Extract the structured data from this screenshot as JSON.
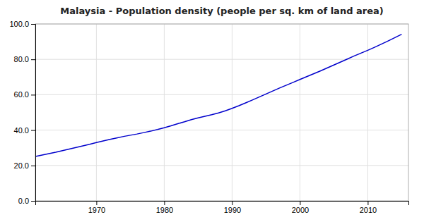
{
  "chart_data": {
    "type": "line",
    "title": "Malaysia - Population density (people per sq. km of land area)",
    "x": [
      1961,
      1962,
      1963,
      1964,
      1965,
      1966,
      1967,
      1968,
      1969,
      1970,
      1971,
      1972,
      1973,
      1974,
      1975,
      1976,
      1977,
      1978,
      1979,
      1980,
      1981,
      1982,
      1983,
      1984,
      1985,
      1986,
      1987,
      1988,
      1989,
      1990,
      1991,
      1992,
      1993,
      1994,
      1995,
      1996,
      1997,
      1998,
      1999,
      2000,
      2001,
      2002,
      2003,
      2004,
      2005,
      2006,
      2007,
      2008,
      2009,
      2010,
      2011,
      2012,
      2013,
      2014,
      2015
    ],
    "values": [
      25.1,
      25.9,
      26.7,
      27.5,
      28.4,
      29.3,
      30.2,
      31.1,
      32.0,
      33.0,
      33.9,
      34.8,
      35.6,
      36.4,
      37.1,
      37.8,
      38.6,
      39.4,
      40.3,
      41.3,
      42.4,
      43.6,
      44.7,
      45.9,
      46.9,
      47.8,
      48.7,
      49.7,
      50.9,
      52.3,
      53.8,
      55.4,
      57.0,
      58.7,
      60.4,
      62.1,
      63.8,
      65.4,
      67.0,
      68.6,
      70.2,
      71.8,
      73.4,
      75.1,
      76.8,
      78.5,
      80.2,
      81.9,
      83.5,
      85.1,
      86.8,
      88.6,
      90.4,
      92.3,
      94.2
    ],
    "color": "#0000cc",
    "xlim": [
      1961,
      2016
    ],
    "ylim": [
      0.0,
      100.0
    ],
    "xticks": [
      1970,
      1980,
      1990,
      2000,
      2010
    ],
    "yticks": [
      {
        "value": 0.0,
        "label": "0.0"
      },
      {
        "value": 20.0,
        "label": "20.0"
      },
      {
        "value": 40.0,
        "label": "40.0"
      },
      {
        "value": 60.0,
        "label": "60.0"
      },
      {
        "value": 80.0,
        "label": "80.0"
      },
      {
        "value": 100.0,
        "label": "100.0"
      }
    ],
    "grid": true
  }
}
